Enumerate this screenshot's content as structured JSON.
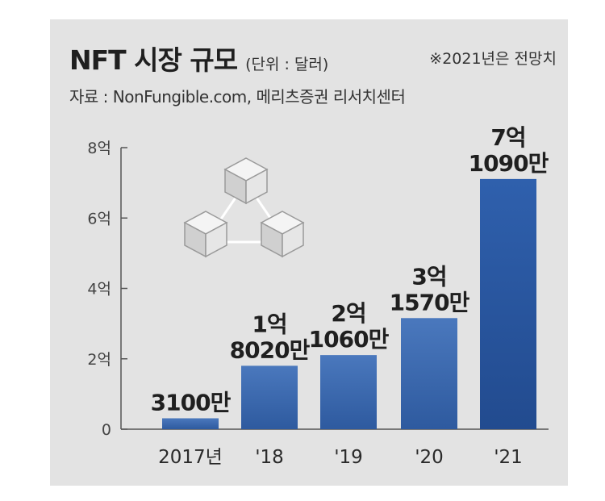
{
  "header": {
    "title": "NFT 시장 규모",
    "unit": "(단위 : 달러)",
    "note": "※2021년은 전망치",
    "source": "자료 : NonFungible.com, 메리츠증권 리서치센터"
  },
  "chart_data": {
    "type": "bar",
    "categories": [
      "2017년",
      "'18",
      "'19",
      "'20",
      "'21"
    ],
    "values": [
      31000000,
      180200000,
      210600000,
      315700000,
      710900000
    ],
    "value_labels": [
      [
        "3100만"
      ],
      [
        "1억",
        "8020만"
      ],
      [
        "2억",
        "1060만"
      ],
      [
        "3억",
        "1570만"
      ],
      [
        "7억",
        "1090만"
      ]
    ],
    "y_ticks": [
      0,
      200000000,
      400000000,
      600000000,
      800000000
    ],
    "y_tick_labels": [
      "0",
      "2억",
      "4억",
      "6억",
      "8억"
    ],
    "ylim": [
      0,
      800000000
    ],
    "grid": false,
    "colors": {
      "bar_top": "#3c6ab0",
      "bar_bottom": "#2d5aa0",
      "bar_last": "#244f96",
      "axis": "#555555"
    }
  }
}
